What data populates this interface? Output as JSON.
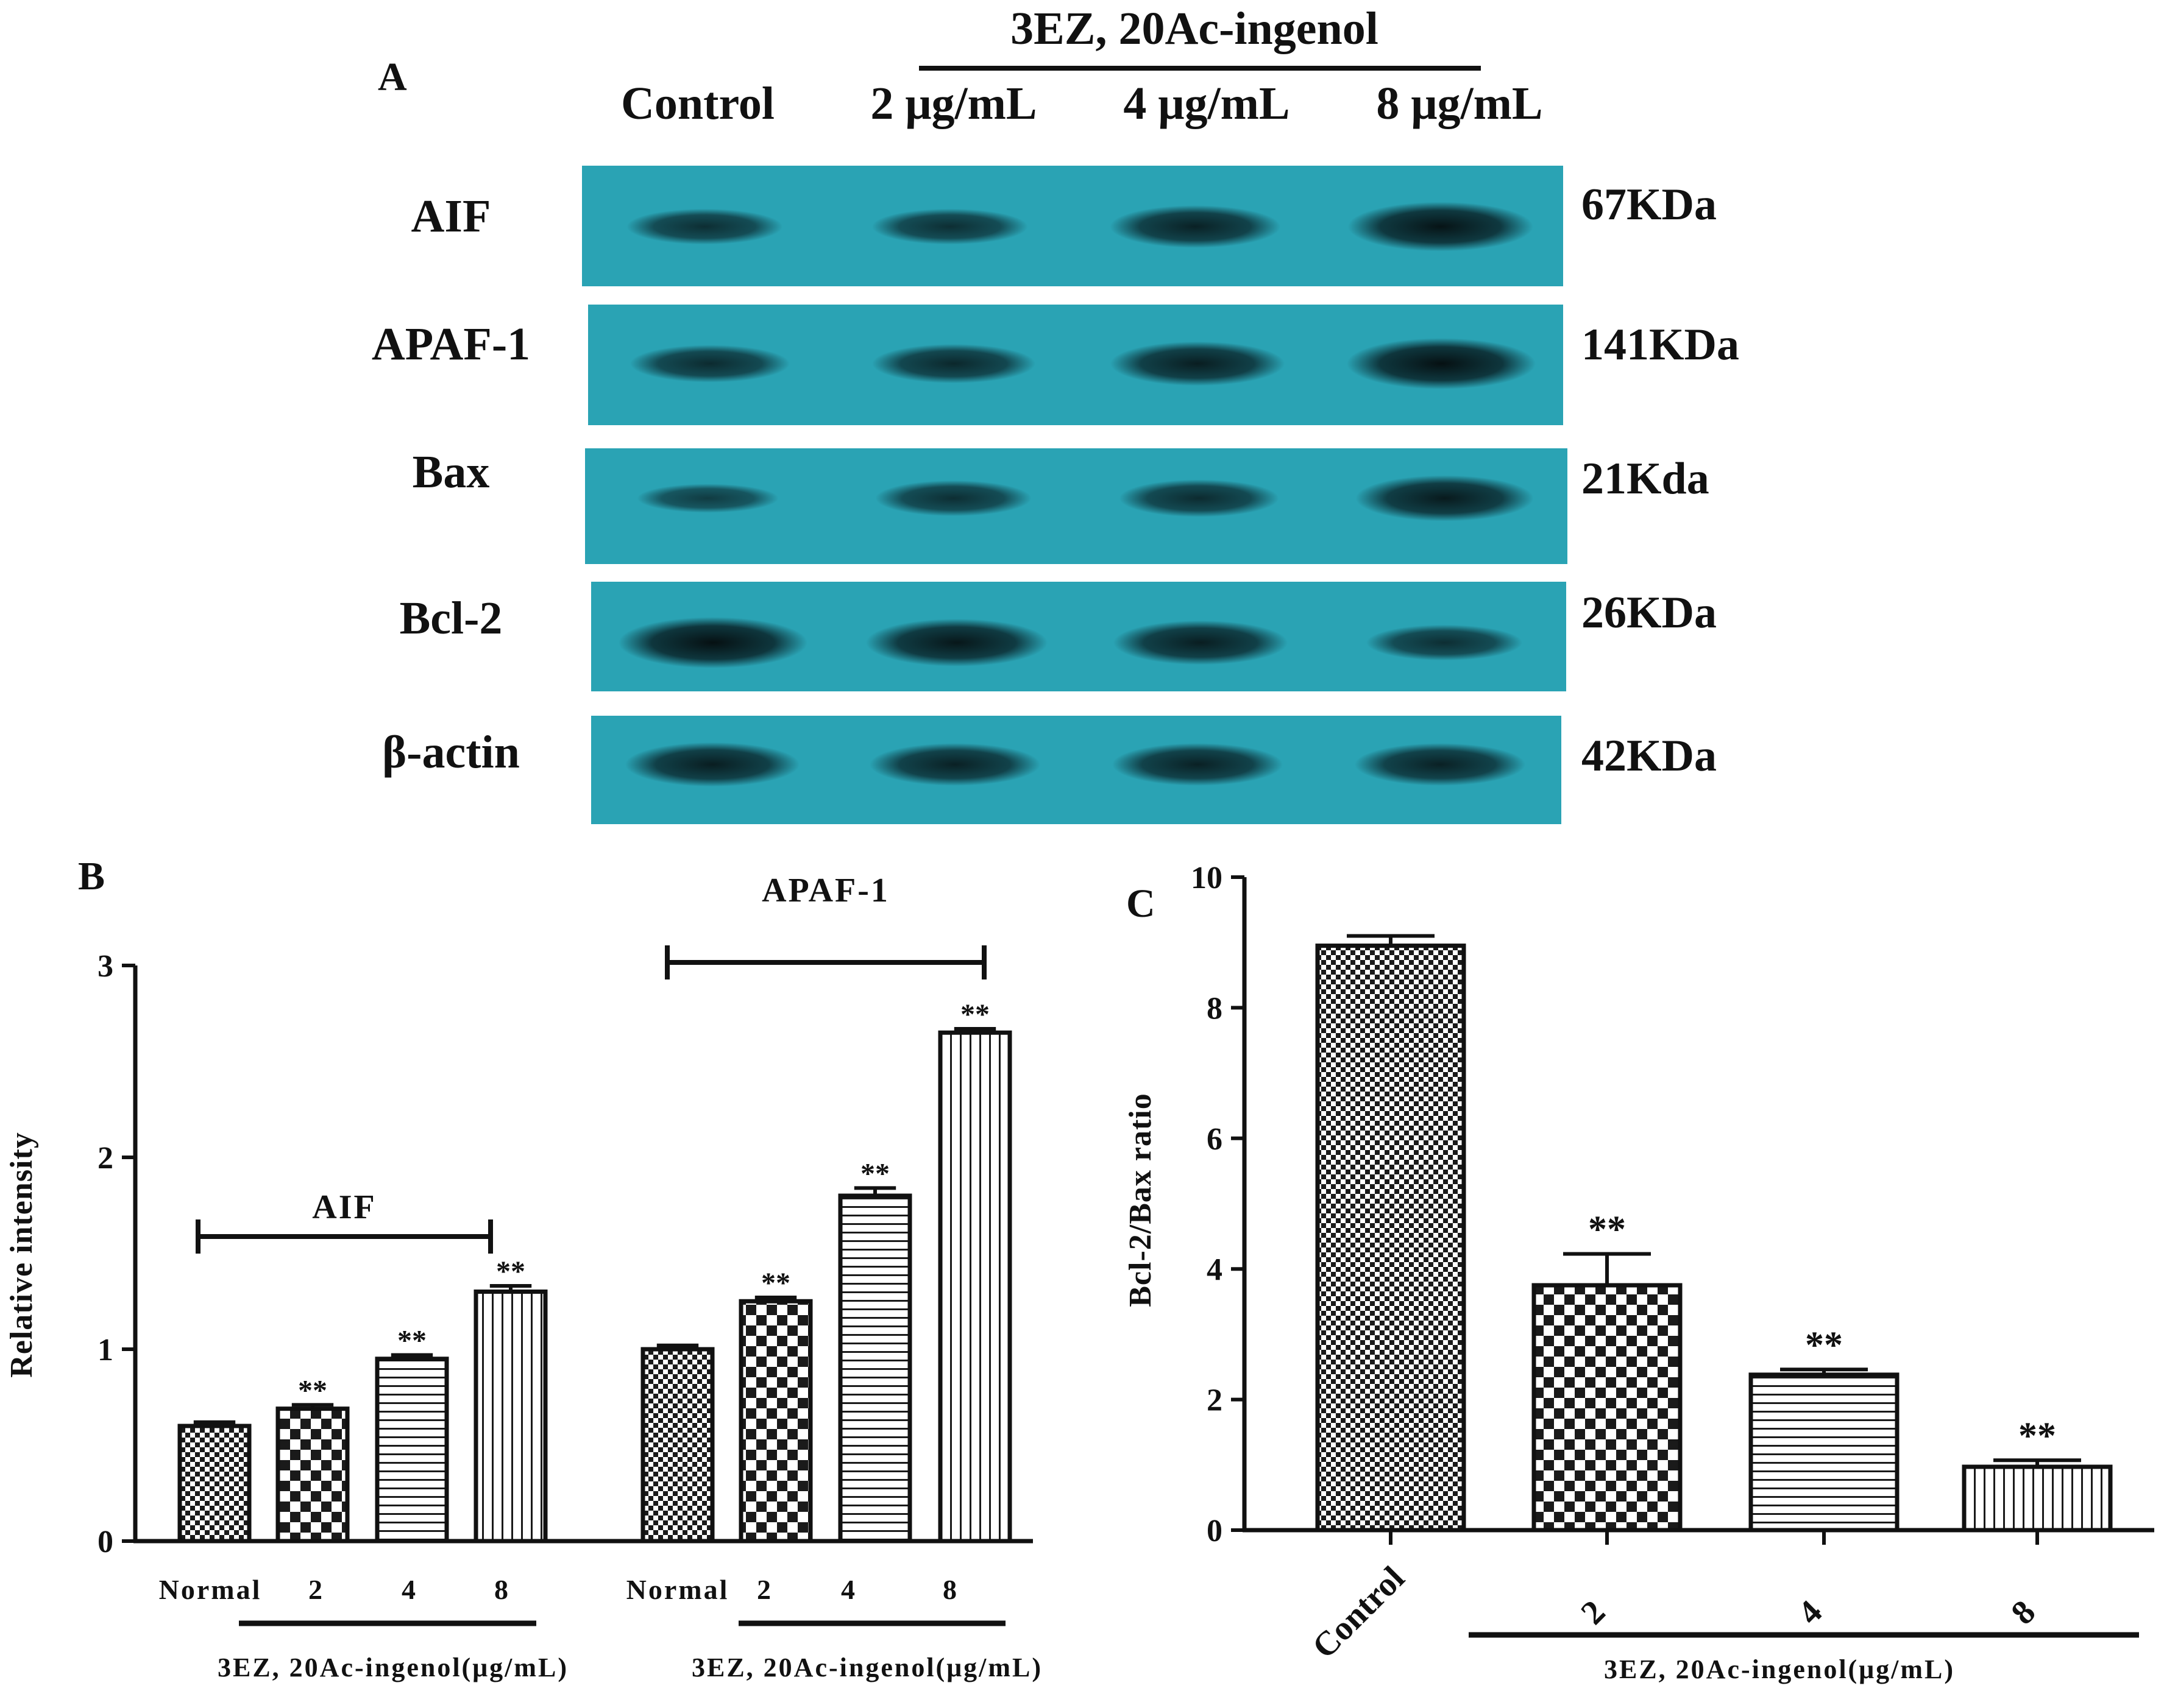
{
  "panel_a": {
    "letter": "A",
    "treatment_header": "3EZ, 20Ac-ingenol",
    "lanes": [
      "Control",
      "2 μg/mL",
      "4 μg/mL",
      "8 μg/mL"
    ],
    "blot_color": "#2aa3b4",
    "blots": [
      {
        "label": "AIF",
        "size": "67KDa",
        "intensity": [
          0.55,
          0.55,
          0.75,
          0.95
        ]
      },
      {
        "label": "APAF-1",
        "size": "141KDa",
        "intensity": [
          0.6,
          0.65,
          0.8,
          1.0
        ]
      },
      {
        "label": "Bax",
        "size": "21Kda",
        "intensity": [
          0.35,
          0.55,
          0.6,
          0.85
        ]
      },
      {
        "label": "Bcl-2",
        "size": "26KDa",
        "intensity": [
          1.0,
          0.9,
          0.8,
          0.55
        ]
      },
      {
        "label": "β-actin",
        "size": "42KDa",
        "intensity": [
          0.8,
          0.75,
          0.75,
          0.75
        ]
      }
    ]
  },
  "chart_data": [
    {
      "panel": "B",
      "type": "bar",
      "title": "",
      "ylabel": "Relative intensity",
      "ylim": [
        0,
        3
      ],
      "yticks": [
        "0",
        "1",
        "2",
        "3"
      ],
      "groups": [
        {
          "name": "AIF",
          "categories": [
            "Normal",
            "2",
            "4",
            "8"
          ],
          "values": [
            0.6,
            0.69,
            0.95,
            1.3
          ],
          "errors": [
            0.02,
            0.02,
            0.02,
            0.03
          ],
          "significance": [
            "",
            "**",
            "**",
            "**"
          ],
          "xlabel": "3EZ, 20Ac-ingenol(μg/mL)"
        },
        {
          "name": "APAF-1",
          "categories": [
            "Normal",
            "2",
            "4",
            "8"
          ],
          "values": [
            1.0,
            1.25,
            1.8,
            2.65
          ],
          "errors": [
            0.02,
            0.02,
            0.04,
            0.02
          ],
          "significance": [
            "",
            "**",
            "**",
            "**"
          ],
          "xlabel": "3EZ, 20Ac-ingenol(μg/mL)"
        }
      ],
      "patterns": [
        "fine-check",
        "check",
        "hlines",
        "vlines"
      ]
    },
    {
      "panel": "C",
      "type": "bar",
      "title": "",
      "ylabel": "Bcl-2/Bax ratio",
      "xlabel": "3EZ, 20Ac-ingenol(μg/mL)",
      "ylim": [
        0,
        10
      ],
      "yticks": [
        "0",
        "2",
        "4",
        "6",
        "8",
        "10"
      ],
      "categories": [
        "Control",
        "2",
        "4",
        "8"
      ],
      "values": [
        8.95,
        3.75,
        2.38,
        0.97
      ],
      "errors": [
        0.15,
        0.48,
        0.08,
        0.1
      ],
      "significance": [
        "",
        "**",
        "**",
        "**"
      ],
      "patterns": [
        "fine-check",
        "check",
        "hlines",
        "vlines"
      ]
    }
  ]
}
